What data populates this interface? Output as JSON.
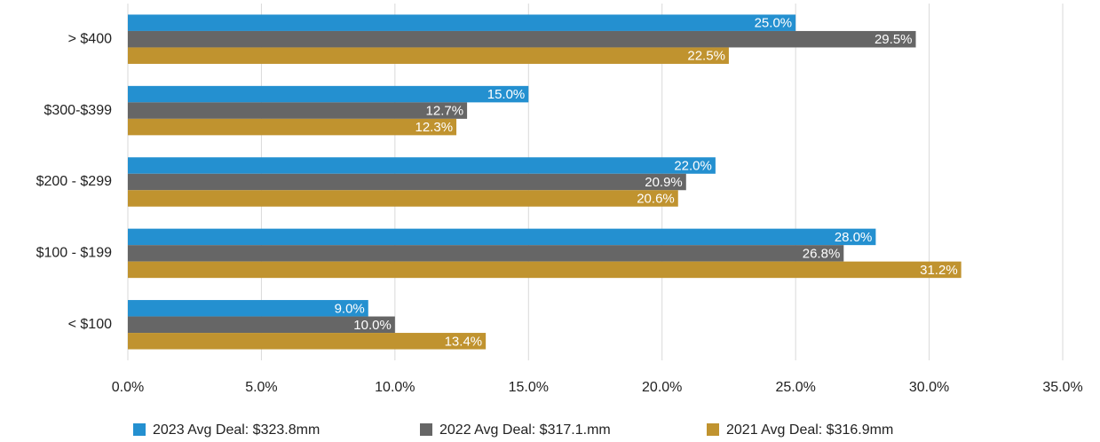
{
  "chart_data": {
    "type": "hbar",
    "categories": [
      "> $400",
      "$300-$399",
      "$200 - $299",
      "$100 - $199",
      "< $100"
    ],
    "series": [
      {
        "name": "2023 Avg Deal: $323.8mm",
        "color": "#2490d0",
        "values": [
          25.0,
          15.0,
          22.0,
          28.0,
          9.0
        ],
        "value_labels": [
          "25.0%",
          "15.0%",
          "22.0%",
          "28.0%",
          "9.0%"
        ]
      },
      {
        "name": "2022 Avg Deal: $317.1.mm",
        "color": "#666666",
        "values": [
          29.5,
          12.7,
          20.9,
          26.8,
          10.0
        ],
        "value_labels": [
          "29.5%",
          "12.7%",
          "20.9%",
          "26.8%",
          "10.0%"
        ]
      },
      {
        "name": "2021 Avg Deal: $316.9mm",
        "color": "#c0932f",
        "values": [
          22.5,
          12.3,
          20.6,
          31.2,
          13.4
        ],
        "value_labels": [
          "22.5%",
          "12.3%",
          "20.6%",
          "31.2%",
          "13.4%"
        ]
      }
    ],
    "xlim": [
      0,
      35
    ],
    "xticks": [
      {
        "value": 0,
        "label": "0.0%"
      },
      {
        "value": 5,
        "label": "5.0%"
      },
      {
        "value": 10,
        "label": "10.0%"
      },
      {
        "value": 15,
        "label": "15.0%"
      },
      {
        "value": 20,
        "label": "20.0%"
      },
      {
        "value": 25,
        "label": "25.0%"
      },
      {
        "value": 30,
        "label": "30.0%"
      },
      {
        "value": 35,
        "label": "35.0%"
      }
    ],
    "grid": true,
    "legend": "bottom"
  }
}
